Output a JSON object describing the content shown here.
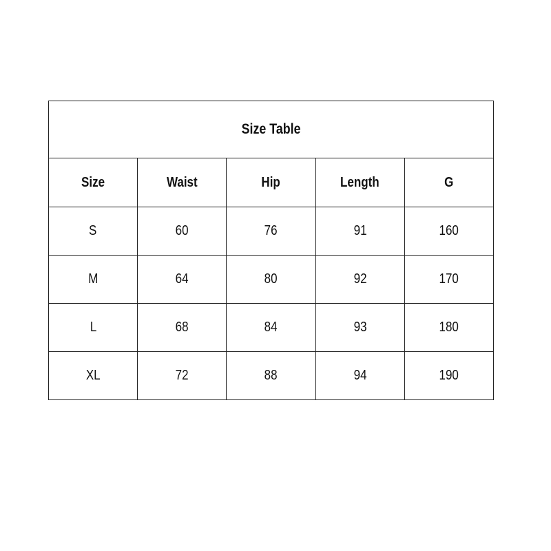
{
  "title": "Size Table",
  "columns": [
    "Size",
    "Waist",
    "Hip",
    "Length",
    "G"
  ],
  "rows": [
    [
      "S",
      "60",
      "76",
      "91",
      "160"
    ],
    [
      "M",
      "64",
      "80",
      "92",
      "170"
    ],
    [
      "L",
      "68",
      "84",
      "93",
      "180"
    ],
    [
      "XL",
      "72",
      "88",
      "94",
      "190"
    ]
  ]
}
